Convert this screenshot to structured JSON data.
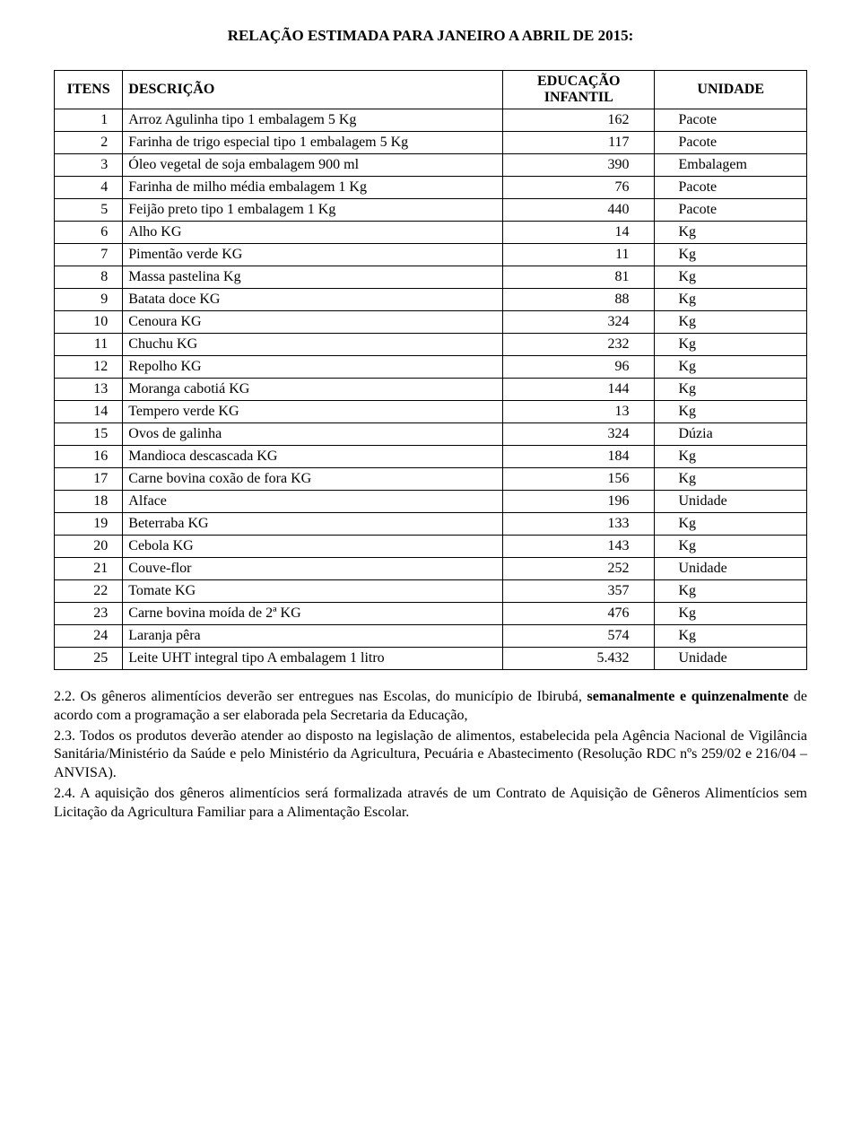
{
  "title": "RELAÇÃO ESTIMADA PARA JANEIRO A ABRIL DE 2015:",
  "table": {
    "headers": {
      "itens": "ITENS",
      "descricao": "DESCRIÇÃO",
      "educacao": "EDUCAÇÃO INFANTIL",
      "unidade": "UNIDADE"
    },
    "rows": [
      {
        "n": "1",
        "desc": "Arroz Agulinha tipo 1 embalagem 5 Kg",
        "qty": "162",
        "unit": "Pacote"
      },
      {
        "n": "2",
        "desc": "Farinha de trigo especial tipo 1 embalagem 5 Kg",
        "qty": "117",
        "unit": "Pacote"
      },
      {
        "n": "3",
        "desc": "Óleo vegetal de soja embalagem 900 ml",
        "qty": "390",
        "unit": "Embalagem"
      },
      {
        "n": "4",
        "desc": "Farinha de milho média embalagem 1 Kg",
        "qty": "76",
        "unit": "Pacote"
      },
      {
        "n": "5",
        "desc": "Feijão preto tipo 1 embalagem 1 Kg",
        "qty": "440",
        "unit": "Pacote"
      },
      {
        "n": "6",
        "desc": "Alho KG",
        "qty": "14",
        "unit": "Kg"
      },
      {
        "n": "7",
        "desc": "Pimentão verde KG",
        "qty": "11",
        "unit": "Kg"
      },
      {
        "n": "8",
        "desc": "Massa pastelina Kg",
        "qty": "81",
        "unit": "Kg"
      },
      {
        "n": "9",
        "desc": "Batata doce KG",
        "qty": "88",
        "unit": "Kg"
      },
      {
        "n": "10",
        "desc": "Cenoura KG",
        "qty": "324",
        "unit": "Kg"
      },
      {
        "n": "11",
        "desc": "Chuchu KG",
        "qty": "232",
        "unit": "Kg"
      },
      {
        "n": "12",
        "desc": "Repolho KG",
        "qty": "96",
        "unit": "Kg"
      },
      {
        "n": "13",
        "desc": "Moranga cabotiá KG",
        "qty": "144",
        "unit": "Kg"
      },
      {
        "n": "14",
        "desc": "Tempero verde KG",
        "qty": "13",
        "unit": "Kg"
      },
      {
        "n": "15",
        "desc": "Ovos de galinha",
        "qty": "324",
        "unit": "Dúzia"
      },
      {
        "n": "16",
        "desc": "Mandioca  descascada KG",
        "qty": "184",
        "unit": "Kg"
      },
      {
        "n": "17",
        "desc": "Carne bovina coxão de fora KG",
        "qty": "156",
        "unit": "Kg"
      },
      {
        "n": "18",
        "desc": "Alface",
        "qty": "196",
        "unit": "Unidade"
      },
      {
        "n": "19",
        "desc": "Beterraba KG",
        "qty": "133",
        "unit": "Kg"
      },
      {
        "n": "20",
        "desc": "Cebola KG",
        "qty": "143",
        "unit": "Kg"
      },
      {
        "n": "21",
        "desc": "Couve-flor",
        "qty": "252",
        "unit": "Unidade"
      },
      {
        "n": "22",
        "desc": "Tomate KG",
        "qty": "357",
        "unit": "Kg"
      },
      {
        "n": "23",
        "desc": "Carne bovina moída de 2ª KG",
        "qty": "476",
        "unit": "Kg"
      },
      {
        "n": "24",
        "desc": "Laranja pêra",
        "qty": "574",
        "unit": "Kg"
      },
      {
        "n": "25",
        "desc": "Leite UHT integral tipo A embalagem 1 litro",
        "qty": "5.432",
        "unit": "Unidade"
      }
    ]
  },
  "paragraphs": {
    "p1_a": "2.2. Os gêneros alimentícios deverão ser entregues nas Escolas, do município de Ibirubá, ",
    "p1_b": "semanalmente e quinzenalmente",
    "p1_c": " de acordo com a programação a ser elaborada pela Secretaria da Educação,",
    "p2": "2.3. Todos os produtos deverão atender ao disposto na legislação de alimentos, estabelecida pela Agência Nacional de Vigilância Sanitária/Ministério da Saúde e pelo Ministério da Agricultura, Pecuária e Abastecimento (Resolução RDC nºs 259/02 e 216/04 – ANVISA).",
    "p3": "2.4. A aquisição dos gêneros alimentícios será formalizada através de um Contrato de Aquisição de Gêneros Alimentícios sem Licitação da Agricultura Familiar para a Alimentação Escolar."
  },
  "style": {
    "background_color": "#ffffff",
    "text_color": "#000000",
    "border_color": "#000000",
    "font_family": "Times New Roman",
    "title_fontsize": 17,
    "body_fontsize": 16
  }
}
